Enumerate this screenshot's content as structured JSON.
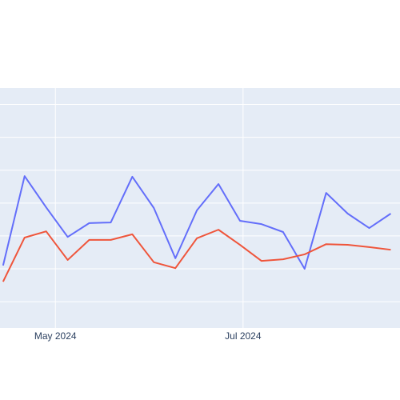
{
  "chart_data": {
    "type": "line",
    "x": [
      "2024-04-14",
      "2024-04-21",
      "2024-04-28",
      "2024-05-05",
      "2024-05-12",
      "2024-05-19",
      "2024-05-26",
      "2024-06-02",
      "2024-06-09",
      "2024-06-16",
      "2024-06-23",
      "2024-06-30",
      "2024-07-07",
      "2024-07-14",
      "2024-07-21",
      "2024-07-28",
      "2024-08-04",
      "2024-08-11",
      "2024-08-18"
    ],
    "series": [
      {
        "color": "#636efa",
        "values": [
          21,
          48.2,
          38.7,
          29.7,
          33.9,
          34.1,
          48,
          38.5,
          23.2,
          37.8,
          45.8,
          34.6,
          33.6,
          31.2,
          20,
          43.1,
          36.8,
          32.4,
          36.8
        ]
      },
      {
        "color": "#ef553b",
        "values": [
          16.1,
          29.5,
          31.4,
          22.7,
          28.8,
          28.8,
          30.5,
          22,
          20.2,
          29.3,
          31.9,
          27.3,
          22.4,
          22.9,
          24.4,
          27.5,
          27.3,
          26.6,
          25.8
        ]
      }
    ],
    "xlim": [
      "2024-04-13",
      "2024-08-21"
    ],
    "xticks": [
      {
        "value": "2024-05-01",
        "label": "May 2024"
      },
      {
        "value": "2024-07-01",
        "label": "Jul 2024"
      }
    ],
    "ylim": [
      2,
      75
    ],
    "yticks": [
      10,
      20,
      30,
      40,
      50,
      60,
      70
    ],
    "grid": true
  }
}
